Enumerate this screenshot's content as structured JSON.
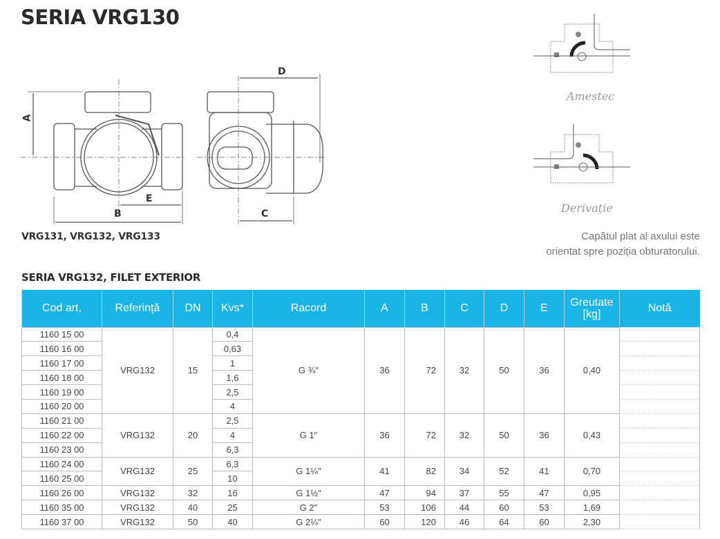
{
  "title": "SERIA VRG130",
  "models_caption": "VRG131, VRG132, VRG133",
  "dimension_labels": {
    "A": "A",
    "B": "B",
    "C": "C",
    "D": "D",
    "E": "E"
  },
  "diagrams": {
    "mix_label": "Amestec",
    "bypass_label": "Derivație"
  },
  "note_lines": [
    "Capătul plat al axului este",
    "orientat spre poziția obturatorului."
  ],
  "table_title": "SERIA VRG132, FILET EXTERIOR",
  "header_color": "#1bb4e6",
  "columns": [
    "Cod art,",
    "Referință",
    "DN",
    "Kvs*",
    "Racord",
    "A",
    "B",
    "C",
    "D",
    "E",
    "Greutate [kg]",
    "Notă"
  ],
  "groups": [
    {
      "ref": "VRG132",
      "dn": "15",
      "racord": "G ¾\"",
      "A": "36",
      "B": "72",
      "C": "32",
      "D": "50",
      "E": "36",
      "weight": "0,40",
      "rows": [
        {
          "code": "1160 15 00",
          "kvs": "0,4"
        },
        {
          "code": "1160 16 00",
          "kvs": "0,63"
        },
        {
          "code": "1160 17 00",
          "kvs": "1"
        },
        {
          "code": "1160 18 00",
          "kvs": "1,6"
        },
        {
          "code": "1160 19 00",
          "kvs": "2,5"
        },
        {
          "code": "1160 20 00",
          "kvs": "4"
        }
      ]
    },
    {
      "ref": "VRG132",
      "dn": "20",
      "racord": "G 1\"",
      "A": "36",
      "B": "72",
      "C": "32",
      "D": "50",
      "E": "36",
      "weight": "0,43",
      "rows": [
        {
          "code": "1160 21 00",
          "kvs": "2,5"
        },
        {
          "code": "1160 22 00",
          "kvs": "4"
        },
        {
          "code": "1160 23 00",
          "kvs": "6,3"
        }
      ]
    },
    {
      "ref": "VRG132",
      "dn": "25",
      "racord": "G 1¼\"",
      "A": "41",
      "B": "82",
      "C": "34",
      "D": "52",
      "E": "41",
      "weight": "0,70",
      "rows": [
        {
          "code": "1160 24 00",
          "kvs": "6,3"
        },
        {
          "code": "1160 25 00",
          "kvs": "10"
        }
      ]
    },
    {
      "ref": "VRG132",
      "dn": "32",
      "racord": "G 1½\"",
      "A": "47",
      "B": "94",
      "C": "37",
      "D": "55",
      "E": "47",
      "weight": "0,95",
      "rows": [
        {
          "code": "1160 26 00",
          "kvs": "16"
        }
      ]
    },
    {
      "ref": "VRG132",
      "dn": "40",
      "racord": "G 2\"",
      "A": "53",
      "B": "106",
      "C": "44",
      "D": "60",
      "E": "53",
      "weight": "1,69",
      "rows": [
        {
          "code": "1160 35 00",
          "kvs": "25"
        }
      ]
    },
    {
      "ref": "VRG132",
      "dn": "50",
      "racord": "G 2¼\"",
      "A": "60",
      "B": "120",
      "C": "46",
      "D": "64",
      "E": "60",
      "weight": "2,30",
      "rows": [
        {
          "code": "1160 37 00",
          "kvs": "40"
        }
      ]
    }
  ]
}
